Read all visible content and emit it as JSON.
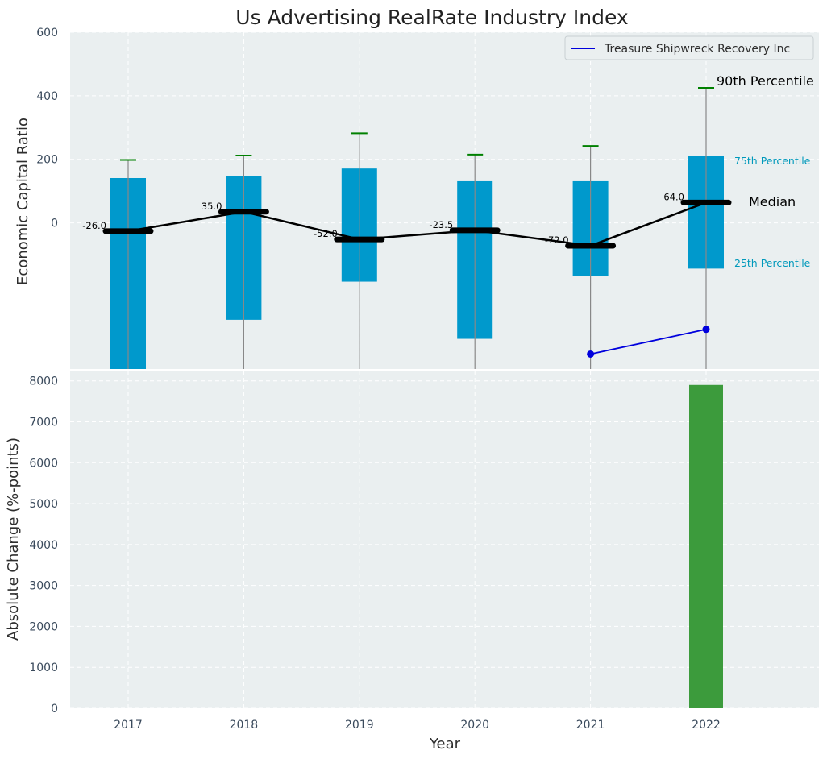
{
  "chart_data": [
    {
      "type": "box",
      "title": "Us Advertising RealRate Industry Index",
      "xlabel": "",
      "ylabel": "Economic Capital Ratio",
      "ylim": [
        -460,
        600
      ],
      "yticks": [
        0,
        200,
        400,
        600
      ],
      "grid": true,
      "categories": [
        "2017",
        "2018",
        "2019",
        "2020",
        "2021",
        "2022"
      ],
      "percentiles": {
        "p25": [
          -460,
          -305,
          -185,
          -365,
          -168,
          -144
        ],
        "median": [
          -26.0,
          35.0,
          -52.0,
          -23.5,
          -72.0,
          64.0
        ],
        "p75": [
          141,
          148,
          171,
          131,
          131,
          211
        ],
        "p90": [
          198,
          212,
          282,
          215,
          242,
          425
        ]
      },
      "median_labels": [
        "-26.0",
        "35.0",
        "-52.0",
        "-23.5",
        "-72.0",
        "64.0"
      ],
      "annotations": {
        "p90": "90th Percentile",
        "p75": "75th Percentile",
        "median": "Median",
        "p25": "25th Percentile"
      },
      "series": [
        {
          "name": "Treasure Shipwreck Recovery Inc",
          "x": [
            "2021",
            "2022"
          ],
          "values": [
            -413,
            -335
          ]
        }
      ],
      "legend": "top-right"
    },
    {
      "type": "bar",
      "xlabel": "Year",
      "ylabel": "Absolute Change (%-points)",
      "categories": [
        "2017",
        "2018",
        "2019",
        "2020",
        "2021",
        "2022"
      ],
      "values": [
        0,
        0,
        0,
        0,
        0,
        7900
      ],
      "ylim": [
        0,
        8250
      ],
      "yticks": [
        0,
        1000,
        2000,
        3000,
        4000,
        5000,
        6000,
        7000,
        8000
      ],
      "grid": true
    }
  ],
  "colors": {
    "panel_bg": "#eaeff0",
    "box": "#0099cc",
    "whisker": "#888888",
    "p90_cap": "#008000",
    "median": "#000000",
    "company": "#0000dd",
    "bar": "#3c9b3c",
    "annotation_blue": "#0099bb",
    "tick_text": "#3a4a5c",
    "label_text": "#2e2e2e"
  }
}
